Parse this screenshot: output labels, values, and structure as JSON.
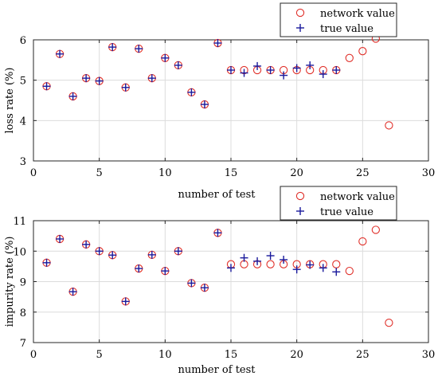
{
  "chart_data": [
    {
      "type": "scatter",
      "title": "",
      "xlabel": "number of test",
      "ylabel": "loss rate (%)",
      "xlim": [
        0,
        30
      ],
      "ylim": [
        3,
        6
      ],
      "xticks": [
        "0",
        "5",
        "10",
        "15",
        "20",
        "25",
        "30"
      ],
      "yticks": [
        "3",
        "4",
        "5",
        "6"
      ],
      "grid": true,
      "legend_position": "top-right",
      "series": [
        {
          "name": "network value",
          "marker": "circle",
          "color": "#e0302a",
          "points": [
            [
              1,
              4.85
            ],
            [
              2,
              5.65
            ],
            [
              3,
              4.6
            ],
            [
              4,
              5.05
            ],
            [
              5,
              4.98
            ],
            [
              6,
              5.82
            ],
            [
              7,
              4.82
            ],
            [
              8,
              5.78
            ],
            [
              9,
              5.05
            ],
            [
              10,
              5.55
            ],
            [
              11,
              5.37
            ],
            [
              12,
              4.7
            ],
            [
              13,
              4.4
            ],
            [
              14,
              5.92
            ],
            [
              15,
              5.25
            ],
            [
              16,
              5.25
            ],
            [
              17,
              5.25
            ],
            [
              18,
              5.25
            ],
            [
              19,
              5.25
            ],
            [
              20,
              5.25
            ],
            [
              21,
              5.25
            ],
            [
              22,
              5.25
            ],
            [
              23,
              5.25
            ],
            [
              24,
              5.55
            ],
            [
              25,
              5.72
            ],
            [
              26,
              6.03
            ],
            [
              27,
              3.88
            ]
          ]
        },
        {
          "name": "true value",
          "marker": "plus",
          "color": "#1a1a9c",
          "points": [
            [
              1,
              4.85
            ],
            [
              2,
              5.65
            ],
            [
              3,
              4.6
            ],
            [
              4,
              5.05
            ],
            [
              5,
              4.98
            ],
            [
              6,
              5.82
            ],
            [
              7,
              4.82
            ],
            [
              8,
              5.78
            ],
            [
              9,
              5.05
            ],
            [
              10,
              5.55
            ],
            [
              11,
              5.37
            ],
            [
              12,
              4.7
            ],
            [
              13,
              4.4
            ],
            [
              14,
              5.92
            ],
            [
              15,
              5.25
            ],
            [
              16,
              5.18
            ],
            [
              17,
              5.35
            ],
            [
              18,
              5.25
            ],
            [
              19,
              5.12
            ],
            [
              20,
              5.3
            ],
            [
              21,
              5.37
            ],
            [
              22,
              5.15
            ],
            [
              23,
              5.25
            ]
          ]
        }
      ]
    },
    {
      "type": "scatter",
      "title": "",
      "xlabel": "number of test",
      "ylabel": "impurity rate (%)",
      "xlim": [
        0,
        30
      ],
      "ylim": [
        7,
        11
      ],
      "xticks": [
        "0",
        "5",
        "10",
        "15",
        "20",
        "25",
        "30"
      ],
      "yticks": [
        "7",
        "8",
        "9",
        "10",
        "11"
      ],
      "grid": true,
      "legend_position": "top-right",
      "series": [
        {
          "name": "network value",
          "marker": "circle",
          "color": "#e0302a",
          "points": [
            [
              1,
              9.62
            ],
            [
              2,
              10.4
            ],
            [
              3,
              8.67
            ],
            [
              4,
              10.22
            ],
            [
              5,
              10.0
            ],
            [
              6,
              9.87
            ],
            [
              7,
              8.35
            ],
            [
              8,
              9.43
            ],
            [
              9,
              9.88
            ],
            [
              10,
              9.35
            ],
            [
              11,
              10.0
            ],
            [
              12,
              8.95
            ],
            [
              13,
              8.8
            ],
            [
              14,
              10.6
            ],
            [
              15,
              9.57
            ],
            [
              16,
              9.57
            ],
            [
              17,
              9.57
            ],
            [
              18,
              9.57
            ],
            [
              19,
              9.57
            ],
            [
              20,
              9.57
            ],
            [
              21,
              9.57
            ],
            [
              22,
              9.57
            ],
            [
              23,
              9.57
            ],
            [
              24,
              9.35
            ],
            [
              25,
              10.32
            ],
            [
              26,
              10.7
            ],
            [
              27,
              7.65
            ]
          ]
        },
        {
          "name": "true value",
          "marker": "plus",
          "color": "#1a1a9c",
          "points": [
            [
              1,
              9.62
            ],
            [
              2,
              10.4
            ],
            [
              3,
              8.67
            ],
            [
              4,
              10.22
            ],
            [
              5,
              10.0
            ],
            [
              6,
              9.87
            ],
            [
              7,
              8.35
            ],
            [
              8,
              9.43
            ],
            [
              9,
              9.88
            ],
            [
              10,
              9.35
            ],
            [
              11,
              10.0
            ],
            [
              12,
              8.95
            ],
            [
              13,
              8.8
            ],
            [
              14,
              10.6
            ],
            [
              15,
              9.45
            ],
            [
              16,
              9.78
            ],
            [
              17,
              9.67
            ],
            [
              18,
              9.85
            ],
            [
              19,
              9.72
            ],
            [
              20,
              9.4
            ],
            [
              21,
              9.55
            ],
            [
              22,
              9.45
            ],
            [
              23,
              9.32
            ]
          ]
        }
      ]
    }
  ]
}
